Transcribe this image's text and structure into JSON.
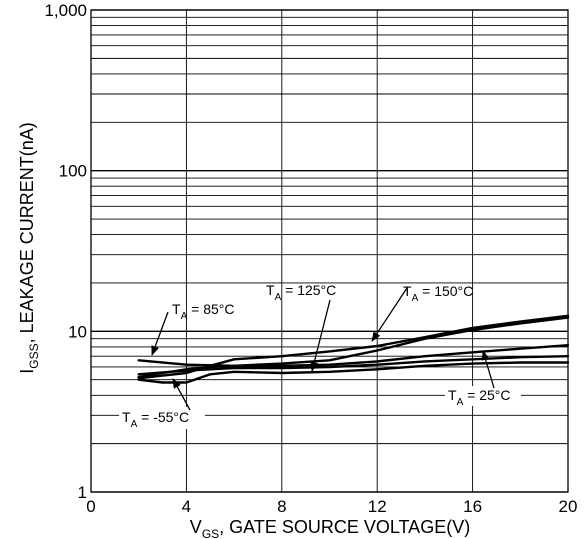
{
  "chart_data": {
    "type": "line",
    "title": "",
    "xlabel": {
      "main": "V",
      "sub": "GS",
      "rest": ", GATE SOURCE VOLTAGE(V)"
    },
    "ylabel": {
      "main": "I",
      "sub": "GSS",
      "rest": ", LEAKAGE CURRENT(nA)"
    },
    "x_scale": "linear",
    "y_scale": "log",
    "xlim": [
      0,
      20
    ],
    "ylim": [
      1,
      1000
    ],
    "x_ticks": [
      0,
      4,
      8,
      12,
      16,
      20
    ],
    "x_tick_labels": [
      "0",
      "4",
      "8",
      "12",
      "16",
      "20"
    ],
    "y_ticks": [
      1,
      10,
      100,
      1000
    ],
    "y_tick_labels": [
      "1",
      "10",
      "100",
      "1,000"
    ],
    "grid": "horizontal minor log grid + vertical at major ticks",
    "series": [
      {
        "name": "T_A = 150°C",
        "x": [
          2,
          3,
          4,
          5,
          6,
          8,
          10,
          12,
          14,
          16,
          18,
          20
        ],
        "y": [
          5.2,
          5.5,
          5.8,
          6.0,
          6.1,
          6.3,
          6.6,
          7.6,
          9.0,
          10.2,
          11.2,
          12.2
        ]
      },
      {
        "name": "T_A = 125°C",
        "x": [
          2,
          3,
          4,
          5,
          6,
          8,
          10,
          12,
          14,
          16,
          18,
          20
        ],
        "y": [
          5.1,
          5.3,
          5.5,
          6.1,
          6.7,
          7.0,
          7.5,
          8.1,
          9.2,
          10.5,
          11.5,
          12.5
        ]
      },
      {
        "name": "T_A = 85°C",
        "x": [
          2,
          4,
          6,
          8,
          10,
          12,
          14,
          16,
          18,
          20
        ],
        "y": [
          6.6,
          6.2,
          6.1,
          6.1,
          6.2,
          6.5,
          7.0,
          7.4,
          7.8,
          8.2
        ]
      },
      {
        "name": "T_A = 25°C",
        "x": [
          2,
          4,
          6,
          8,
          10,
          12,
          14,
          16,
          18,
          20
        ],
        "y": [
          5.4,
          5.7,
          5.9,
          5.9,
          6.0,
          6.2,
          6.5,
          6.7,
          6.9,
          7.0
        ]
      },
      {
        "name": "T_A = -55°C",
        "x": [
          2,
          3,
          4,
          5,
          6,
          8,
          10,
          12,
          14,
          16,
          18,
          20
        ],
        "y": [
          5.0,
          4.8,
          4.8,
          5.4,
          5.6,
          5.5,
          5.6,
          5.8,
          6.1,
          6.3,
          6.4,
          6.4
        ]
      }
    ],
    "annotations": [
      {
        "label": "T",
        "sub": "A",
        "rest": " = 85°C"
      },
      {
        "label": "T",
        "sub": "A",
        "rest": " = 125°C"
      },
      {
        "label": "T",
        "sub": "A",
        "rest": " = 150°C"
      },
      {
        "label": "T",
        "sub": "A",
        "rest": " = 25°C"
      },
      {
        "label": "T",
        "sub": "A",
        "rest": " = -55°C"
      }
    ],
    "colors": {
      "line": "#000000",
      "grid": "#000000",
      "background": "#ffffff"
    }
  }
}
